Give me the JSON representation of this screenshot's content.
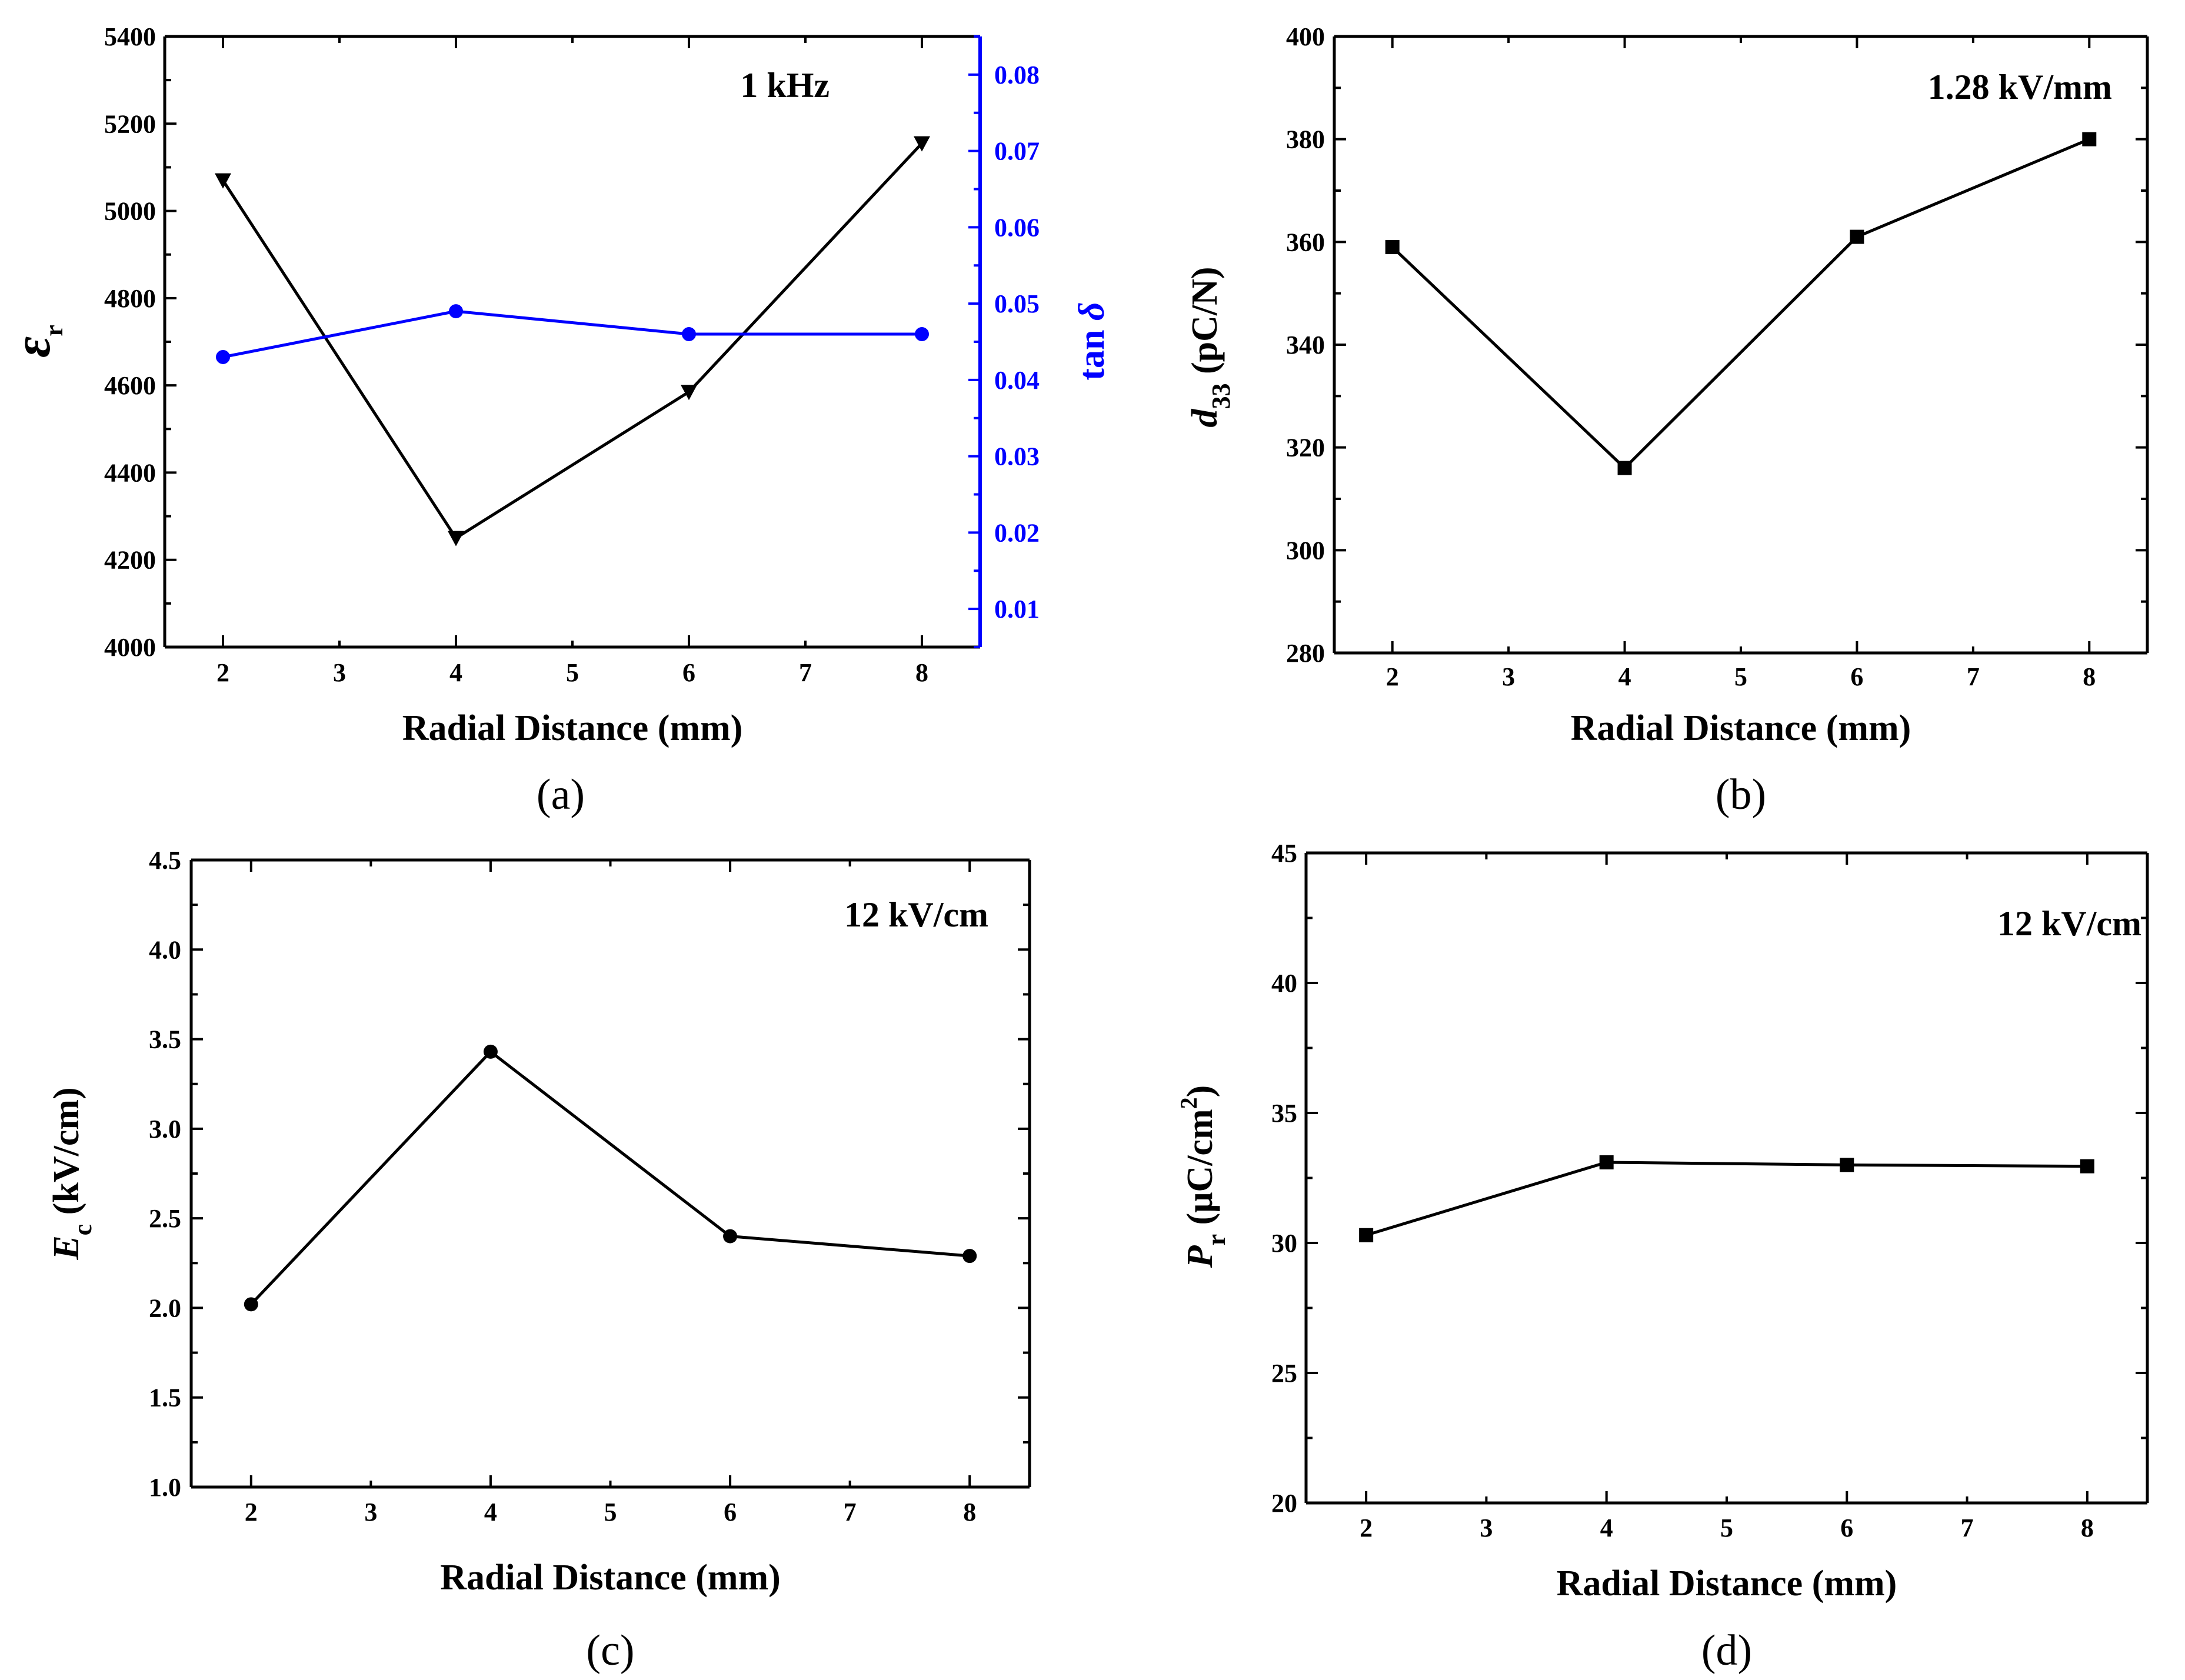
{
  "colors": {
    "black": "#000000",
    "blue": "#0000ff"
  },
  "chart_data": [
    {
      "type": "line",
      "panel_label": "(a)",
      "annotation": "1 kHz",
      "xlabel": "Radial Distance (mm)",
      "xlim": [
        1.5,
        8.5
      ],
      "xticks": [
        2,
        3,
        4,
        5,
        6,
        7,
        8
      ],
      "ylabel": {
        "symbol": "ε",
        "subscript": "r"
      },
      "ylim": [
        4000,
        5400
      ],
      "yticks": [
        4000,
        4200,
        4400,
        4600,
        4800,
        5000,
        5200,
        5400
      ],
      "y2label": {
        "text": "tan ",
        "symbol": "δ"
      },
      "y2lim": [
        0.005,
        0.085
      ],
      "y2ticks": [
        "0.01",
        "0.02",
        "0.03",
        "0.04",
        "0.05",
        "0.06",
        "0.07",
        "0.08"
      ],
      "series": [
        {
          "name": "εr",
          "axis": "left",
          "color": "#000000",
          "marker": "triangle-down",
          "x": [
            2,
            4,
            6,
            8
          ],
          "values": [
            5070,
            4250,
            4585,
            5155
          ]
        },
        {
          "name": "tan δ",
          "axis": "right",
          "color": "#0000ff",
          "marker": "circle",
          "x": [
            2,
            4,
            6,
            8
          ],
          "values": [
            0.043,
            0.049,
            0.046,
            0.046
          ]
        }
      ]
    },
    {
      "type": "line",
      "panel_label": "(b)",
      "annotation": "1.28 kV/mm",
      "xlabel": "Radial Distance (mm)",
      "xlim": [
        1.5,
        8.5
      ],
      "xticks": [
        2,
        3,
        4,
        5,
        6,
        7,
        8
      ],
      "ylabel": {
        "symbol": "d",
        "subscript": "33",
        "unit": " (pC/N)"
      },
      "ylim": [
        280,
        400
      ],
      "yticks": [
        280,
        300,
        320,
        340,
        360,
        380,
        400
      ],
      "series": [
        {
          "name": "d33",
          "color": "#000000",
          "marker": "square",
          "x": [
            2,
            4,
            6,
            8
          ],
          "values": [
            359,
            316,
            361,
            380
          ]
        }
      ]
    },
    {
      "type": "line",
      "panel_label": "(c)",
      "annotation": "12 kV/cm",
      "xlabel": "Radial Distance (mm)",
      "xlim": [
        1.5,
        8.5
      ],
      "xticks": [
        2,
        3,
        4,
        5,
        6,
        7,
        8
      ],
      "ylabel": {
        "symbol": "E",
        "subscript": "c",
        "unit": " (kV/cm)"
      },
      "ylim": [
        1.0,
        4.5
      ],
      "yticks": [
        "1.0",
        "1.5",
        "2.0",
        "2.5",
        "3.0",
        "3.5",
        "4.0",
        "4.5"
      ],
      "series": [
        {
          "name": "Ec",
          "color": "#000000",
          "marker": "circle",
          "x": [
            2,
            4,
            6,
            8
          ],
          "values": [
            2.02,
            3.43,
            2.4,
            2.29
          ]
        }
      ]
    },
    {
      "type": "line",
      "panel_label": "(d)",
      "annotation": "12 kV/cm",
      "xlabel": "Radial Distance (mm)",
      "xlim": [
        1.5,
        8.5
      ],
      "xticks": [
        2,
        3,
        4,
        5,
        6,
        7,
        8
      ],
      "ylabel": {
        "symbol": "P",
        "subscript": "r",
        "unit": " (μC/cm",
        "sup": "2",
        "close": ")"
      },
      "ylim": [
        20,
        45
      ],
      "yticks": [
        20,
        25,
        30,
        35,
        40,
        45
      ],
      "series": [
        {
          "name": "Pr",
          "color": "#000000",
          "marker": "square",
          "x": [
            2,
            4,
            6,
            8
          ],
          "values": [
            30.3,
            33.1,
            33.0,
            32.95
          ]
        }
      ]
    }
  ]
}
